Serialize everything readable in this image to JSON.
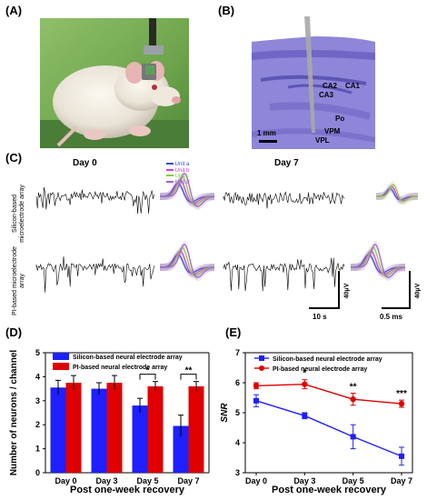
{
  "panels": {
    "A": {
      "label": "(A)"
    },
    "B": {
      "label": "(B)",
      "regions": [
        "CA2",
        "CA1",
        "CA3",
        "Po",
        "VPM",
        "VPL"
      ],
      "scale_bar": "1 mm"
    },
    "C": {
      "label": "(C)",
      "day0": "Day 0",
      "day7": "Day 7",
      "row_labels": [
        "Silicon-based microelectrode array",
        "PI-based microelectrode array"
      ],
      "units": [
        "Unit a",
        "Unit b",
        "Unit c",
        "Unit d"
      ],
      "unit_colors": [
        "#3050c8",
        "#d040c8",
        "#88cc44",
        "#a060d8"
      ],
      "time_bar": "10 s",
      "volt_bar": "40μV",
      "time_bar2": "0.5 ms",
      "volt_bar2": "40μV"
    },
    "D": {
      "label": "(D)"
    },
    "E": {
      "label": "(E)"
    }
  },
  "chart_data": [
    {
      "type": "bar",
      "panel": "D",
      "categories": [
        "Day 0",
        "Day 3",
        "Day 5",
        "Day 7"
      ],
      "series": [
        {
          "name": "Silicon-based neural electrode array",
          "values": [
            3.55,
            3.5,
            2.8,
            1.95
          ],
          "errors": [
            0.3,
            0.25,
            0.3,
            0.45
          ],
          "color": "#1f1fff"
        },
        {
          "name": "PI-based neural electrode array",
          "values": [
            3.75,
            3.75,
            3.6,
            3.6
          ],
          "errors": [
            0.3,
            0.3,
            0.2,
            0.2
          ],
          "color": "#e00000"
        }
      ],
      "xlabel": "Post one-week recovery",
      "ylabel": "Number of neurons / channel",
      "ylim": [
        0,
        5
      ],
      "yticks": [
        0,
        1,
        2,
        3,
        4,
        5
      ],
      "significance": [
        {
          "category": "Day 5",
          "text": "*"
        },
        {
          "category": "Day 7",
          "text": "**"
        }
      ],
      "legend": "top"
    },
    {
      "type": "line",
      "panel": "E",
      "x": [
        "Day 0",
        "Day 3",
        "Day 5",
        "Day 7"
      ],
      "series": [
        {
          "name": "Silicon-based neural electrode array",
          "values": [
            5.4,
            4.9,
            4.2,
            3.55
          ],
          "errors": [
            0.2,
            0.1,
            0.4,
            0.3
          ],
          "color": "#1f1fff",
          "marker": "square"
        },
        {
          "name": "PI-based neural electrode array",
          "values": [
            5.9,
            5.95,
            5.45,
            5.3
          ],
          "errors": [
            0.1,
            0.15,
            0.2,
            0.12
          ],
          "color": "#e00000",
          "marker": "circle"
        }
      ],
      "xlabel": "Post one-week recovery",
      "ylabel": "SNR",
      "ylim": [
        3,
        7
      ],
      "yticks": [
        3,
        4,
        5,
        6,
        7
      ],
      "significance": [
        {
          "category": "Day 3",
          "text": "*"
        },
        {
          "category": "Day 5",
          "text": "**"
        },
        {
          "category": "Day 7",
          "text": "***"
        }
      ],
      "legend": "top"
    }
  ]
}
